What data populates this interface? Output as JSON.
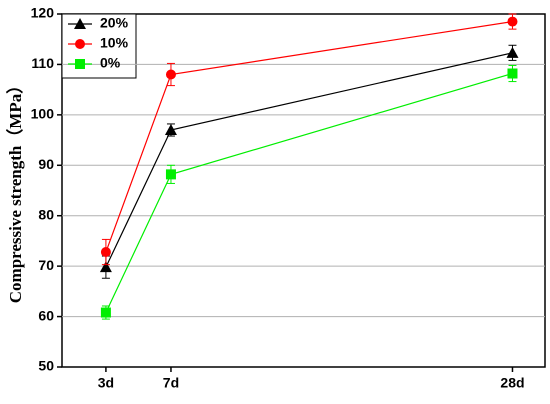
{
  "chart_data": {
    "type": "line",
    "ylabel": "Compressive strength（MPa）",
    "x": [
      3,
      7,
      28
    ],
    "xlim": [
      0.3,
      30
    ],
    "xticks": [
      {
        "value": 3,
        "label": "3d"
      },
      {
        "value": 7,
        "label": "7d"
      },
      {
        "value": 28,
        "label": "28d"
      }
    ],
    "ylim": [
      50,
      120
    ],
    "yticks": [
      50,
      60,
      70,
      80,
      90,
      100,
      110,
      120
    ],
    "grid": true,
    "legend": "upper left",
    "series": [
      {
        "name": "20%",
        "color": "#000000",
        "marker": "triangle",
        "values": [
          69.8,
          97.0,
          112.3
        ],
        "errors": [
          2.2,
          1.2,
          1.5
        ]
      },
      {
        "name": "10%",
        "color": "#ff0000",
        "marker": "circle",
        "values": [
          72.8,
          108.0,
          118.5
        ],
        "errors": [
          2.5,
          2.2,
          1.5
        ]
      },
      {
        "name": "0%",
        "color": "#00ee00",
        "marker": "square",
        "values": [
          60.8,
          88.2,
          108.2
        ],
        "errors": [
          1.3,
          1.8,
          1.6
        ]
      }
    ]
  }
}
